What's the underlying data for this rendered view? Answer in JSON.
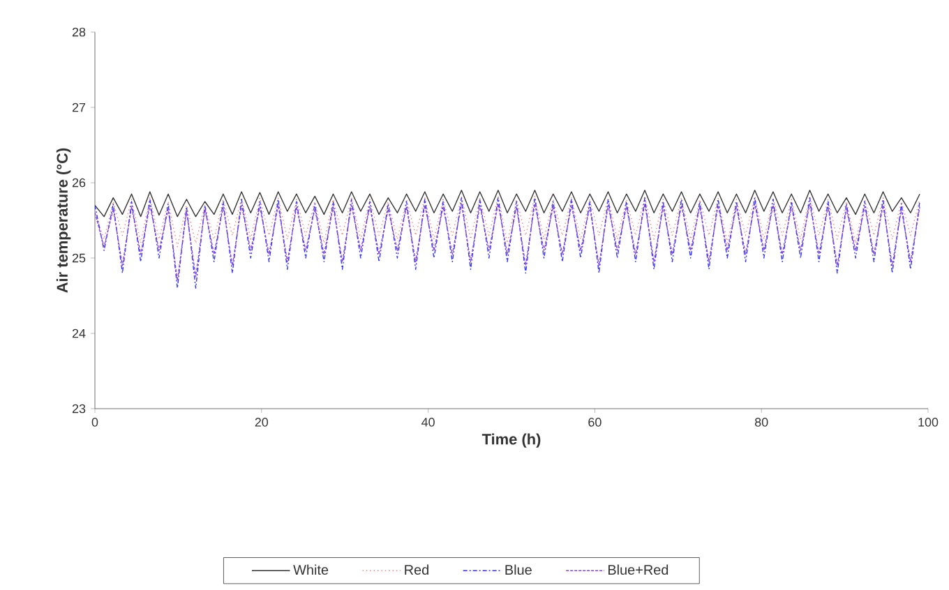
{
  "chart_data": {
    "type": "line",
    "xlabel": "Time (h)",
    "ylabel": "Air temperature (°C)",
    "xlim": [
      0,
      100
    ],
    "ylim": [
      23,
      28
    ],
    "xticks": [
      0,
      20,
      40,
      60,
      80,
      100
    ],
    "yticks": [
      23,
      24,
      25,
      26,
      27,
      28
    ],
    "grid": false,
    "legend": "bottom",
    "marker": "none",
    "x": [
      0,
      1.1,
      2.2,
      3.3,
      4.4,
      5.5,
      6.6,
      7.7,
      8.8,
      9.9,
      11,
      12.1,
      13.2,
      14.3,
      15.4,
      16.5,
      17.6,
      18.7,
      19.8,
      20.9,
      22,
      23.1,
      24.2,
      25.3,
      26.4,
      27.5,
      28.6,
      29.7,
      30.8,
      31.9,
      33,
      34.1,
      35.2,
      36.3,
      37.4,
      38.5,
      39.6,
      40.7,
      41.8,
      42.9,
      44,
      45.1,
      46.2,
      47.3,
      48.4,
      49.5,
      50.6,
      51.7,
      52.8,
      53.9,
      55,
      56.1,
      57.2,
      58.3,
      59.4,
      60.5,
      61.6,
      62.7,
      63.8,
      64.9,
      66,
      67.1,
      68.2,
      69.3,
      70.4,
      71.5,
      72.6,
      73.7,
      74.8,
      75.9,
      77,
      78.1,
      79.2,
      80.3,
      81.4,
      82.5,
      83.6,
      84.7,
      85.8,
      86.9,
      88,
      89.1,
      90.2,
      91.3,
      92.4,
      93.5,
      94.6,
      95.7,
      96.8,
      97.9,
      99
    ],
    "series": [
      {
        "name": "White",
        "color": "#333333",
        "line_style": "solid",
        "values": [
          25.7,
          25.55,
          25.8,
          25.58,
          25.85,
          25.55,
          25.88,
          25.57,
          25.85,
          25.55,
          25.78,
          25.55,
          25.75,
          25.58,
          25.85,
          25.58,
          25.88,
          25.6,
          25.87,
          25.58,
          25.88,
          25.62,
          25.85,
          25.6,
          25.82,
          25.58,
          25.85,
          25.6,
          25.88,
          25.62,
          25.85,
          25.58,
          25.8,
          25.6,
          25.85,
          25.62,
          25.88,
          25.6,
          25.85,
          25.62,
          25.9,
          25.6,
          25.88,
          25.62,
          25.9,
          25.6,
          25.85,
          25.62,
          25.9,
          25.6,
          25.85,
          25.62,
          25.88,
          25.6,
          25.85,
          25.62,
          25.88,
          25.6,
          25.85,
          25.62,
          25.9,
          25.6,
          25.85,
          25.62,
          25.88,
          25.6,
          25.85,
          25.62,
          25.88,
          25.6,
          25.85,
          25.6,
          25.9,
          25.62,
          25.88,
          25.6,
          25.85,
          25.6,
          25.9,
          25.62,
          25.85,
          25.6,
          25.8,
          25.58,
          25.85,
          25.6,
          25.88,
          25.62,
          25.8,
          25.6,
          25.85
        ]
      },
      {
        "name": "Red",
        "color": "#f08080",
        "line_style": "dotted",
        "values": [
          25.6,
          25.25,
          25.75,
          25.3,
          25.78,
          25.2,
          25.8,
          25.25,
          25.75,
          25.15,
          25.7,
          25.2,
          25.7,
          25.25,
          25.78,
          25.3,
          25.8,
          25.25,
          25.8,
          25.3,
          25.8,
          25.25,
          25.78,
          25.3,
          25.75,
          25.2,
          25.78,
          25.3,
          25.8,
          25.25,
          25.78,
          25.3,
          25.75,
          25.25,
          25.78,
          25.3,
          25.8,
          25.25,
          25.78,
          25.3,
          25.82,
          25.25,
          25.8,
          25.3,
          25.82,
          25.2,
          25.78,
          25.3,
          25.82,
          25.25,
          25.78,
          25.3,
          25.8,
          25.25,
          25.78,
          25.3,
          25.8,
          25.25,
          25.78,
          25.3,
          25.82,
          25.25,
          25.78,
          25.3,
          25.8,
          25.25,
          25.78,
          25.3,
          25.8,
          25.2,
          25.78,
          25.3,
          25.82,
          25.25,
          25.8,
          25.3,
          25.78,
          25.25,
          25.82,
          25.3,
          25.78,
          25.25,
          25.75,
          25.2,
          25.78,
          25.3,
          25.8,
          25.25,
          25.75,
          25.3,
          25.78
        ]
      },
      {
        "name": "Blue",
        "color": "#3333ff",
        "line_style": "dashdot",
        "values": [
          25.7,
          25.1,
          25.72,
          24.8,
          25.75,
          24.95,
          25.78,
          25.0,
          25.72,
          24.6,
          25.68,
          24.6,
          25.7,
          24.95,
          25.75,
          24.8,
          25.78,
          25.0,
          25.75,
          24.95,
          25.78,
          24.85,
          25.75,
          25.0,
          25.72,
          24.95,
          25.75,
          24.85,
          25.78,
          25.0,
          25.75,
          24.95,
          25.72,
          25.0,
          25.75,
          24.85,
          25.78,
          25.0,
          25.75,
          24.95,
          25.8,
          24.85,
          25.78,
          25.0,
          25.8,
          24.95,
          25.75,
          24.8,
          25.8,
          25.0,
          25.75,
          24.95,
          25.78,
          25.0,
          25.75,
          24.8,
          25.78,
          25.0,
          25.75,
          24.95,
          25.8,
          24.85,
          25.75,
          24.95,
          25.78,
          25.0,
          25.75,
          24.85,
          25.78,
          25.0,
          25.75,
          24.95,
          25.8,
          25.0,
          25.78,
          24.95,
          25.75,
          25.0,
          25.8,
          24.95,
          25.75,
          24.8,
          25.72,
          25.0,
          25.75,
          24.95,
          25.78,
          24.8,
          25.72,
          24.85,
          25.75
        ]
      },
      {
        "name": "Blue+Red",
        "color": "#8844dd",
        "line_style": "dashed",
        "values": [
          25.6,
          25.15,
          25.65,
          24.9,
          25.68,
          25.05,
          25.7,
          25.1,
          25.65,
          24.7,
          25.62,
          24.75,
          25.65,
          25.05,
          25.68,
          24.9,
          25.7,
          25.1,
          25.68,
          25.05,
          25.7,
          24.95,
          25.68,
          25.1,
          25.65,
          25.05,
          25.68,
          24.95,
          25.7,
          25.1,
          25.68,
          25.05,
          25.65,
          25.1,
          25.68,
          24.95,
          25.7,
          25.1,
          25.68,
          25.05,
          25.72,
          24.95,
          25.7,
          25.1,
          25.72,
          25.05,
          25.68,
          24.9,
          25.72,
          25.1,
          25.68,
          25.05,
          25.7,
          25.1,
          25.68,
          24.9,
          25.7,
          25.1,
          25.68,
          25.05,
          25.72,
          24.95,
          25.68,
          25.05,
          25.7,
          25.1,
          25.68,
          24.95,
          25.7,
          25.1,
          25.68,
          25.05,
          25.72,
          25.1,
          25.7,
          25.05,
          25.68,
          25.1,
          25.72,
          25.05,
          25.68,
          24.9,
          25.65,
          25.1,
          25.68,
          25.05,
          25.7,
          24.9,
          25.65,
          24.95,
          25.68
        ]
      }
    ]
  }
}
